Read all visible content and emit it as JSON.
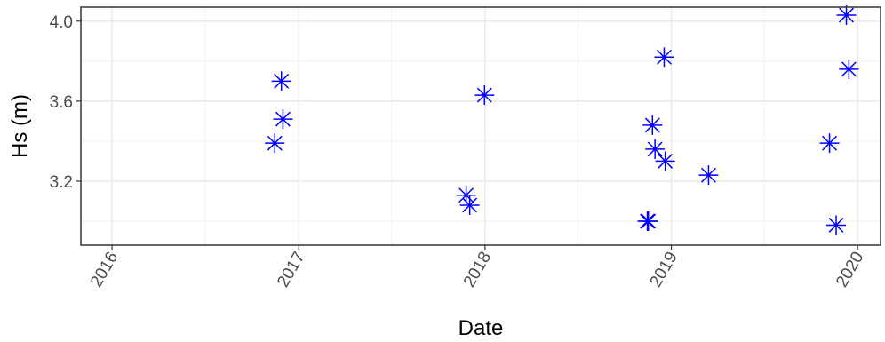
{
  "chart_data": {
    "type": "scatter",
    "xlabel": "Date",
    "ylabel": "Hs (m)",
    "x_ticks": [
      "2016",
      "2017",
      "2018",
      "2019",
      "2020"
    ],
    "y_ticks": [
      "3.2",
      "3.6",
      "4.0"
    ],
    "xlim": [
      "2015-11-01",
      "2020-02-15"
    ],
    "ylim": [
      2.88,
      4.07
    ],
    "grid": true,
    "legend": "none",
    "marker": "asterisk",
    "color": "#0000ff",
    "points": [
      {
        "x": "2016-11-15",
        "y": 3.39
      },
      {
        "x": "2016-11-28",
        "y": 3.7
      },
      {
        "x": "2016-12-01",
        "y": 3.51
      },
      {
        "x": "2017-11-25",
        "y": 3.13
      },
      {
        "x": "2017-12-02",
        "y": 3.08
      },
      {
        "x": "2017-12-31",
        "y": 3.63
      },
      {
        "x": "2018-11-15",
        "y": 3.0
      },
      {
        "x": "2018-11-17",
        "y": 3.0
      },
      {
        "x": "2018-11-25",
        "y": 3.48
      },
      {
        "x": "2018-11-30",
        "y": 3.36
      },
      {
        "x": "2018-12-18",
        "y": 3.82
      },
      {
        "x": "2018-12-20",
        "y": 3.3
      },
      {
        "x": "2019-03-15",
        "y": 3.23
      },
      {
        "x": "2019-11-07",
        "y": 3.39
      },
      {
        "x": "2019-11-20",
        "y": 2.98
      },
      {
        "x": "2019-12-10",
        "y": 4.03
      },
      {
        "x": "2019-12-15",
        "y": 3.76
      }
    ]
  }
}
